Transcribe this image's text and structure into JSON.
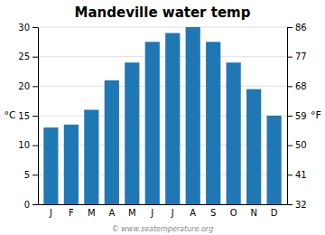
{
  "chart_data": {
    "type": "bar",
    "title": "Mandeville water temp",
    "categories": [
      "J",
      "F",
      "M",
      "A",
      "M",
      "J",
      "J",
      "A",
      "S",
      "O",
      "N",
      "D"
    ],
    "values": [
      13,
      13.5,
      16,
      21,
      24,
      27.5,
      29,
      30,
      27.5,
      24,
      19.5,
      15
    ],
    "ylabel": "°C",
    "y2label": "°F",
    "ylim": [
      0,
      30
    ],
    "yticks": [
      0,
      5,
      10,
      15,
      20,
      25,
      30
    ],
    "y2lim": [
      32,
      86
    ],
    "y2ticks": [
      32,
      41,
      50,
      59,
      68,
      77,
      86
    ],
    "grid": true,
    "annotations": [
      "© www.seatemperature.org"
    ]
  }
}
